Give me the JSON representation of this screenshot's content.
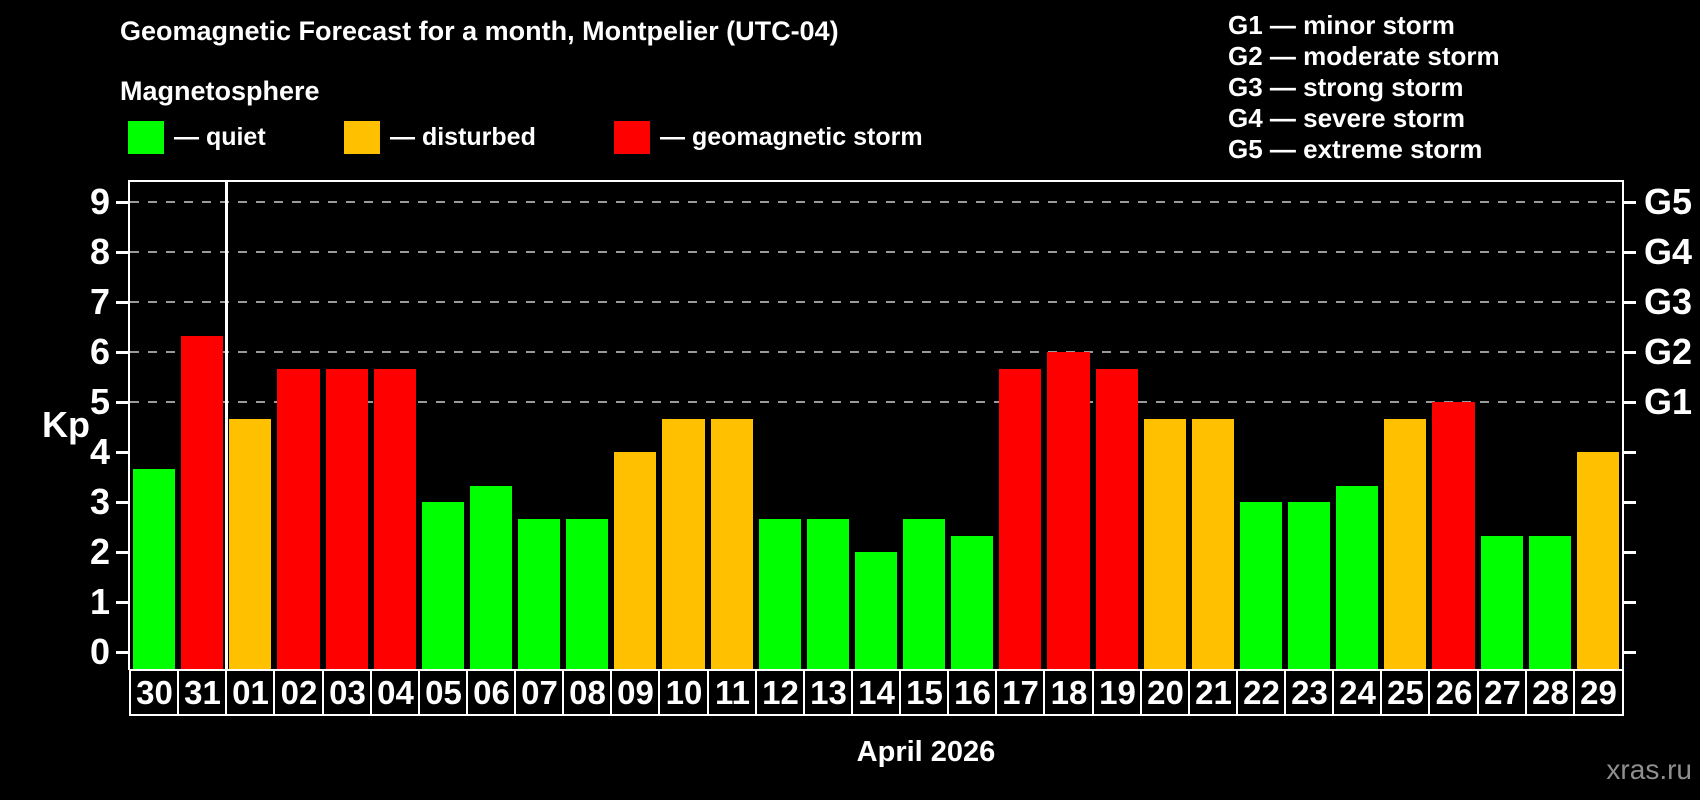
{
  "header": {
    "title": "Geomagnetic Forecast for a month, Montpelier (UTC-04)",
    "subtitle": "Magnetosphere"
  },
  "legend": {
    "items": [
      {
        "status": "quiet",
        "label": "— quiet",
        "color": "#00ff00"
      },
      {
        "status": "disturbed",
        "label": "— disturbed",
        "color": "#ffc000"
      },
      {
        "status": "storm",
        "label": "— geomagnetic storm",
        "color": "#ff0000"
      }
    ]
  },
  "storm_scale_legend": {
    "items": [
      "G1 — minor storm",
      "G2 — moderate storm",
      "G3 — strong storm",
      "G4 — severe storm",
      "G5 — extreme storm"
    ]
  },
  "chart_data": {
    "type": "bar",
    "title": "Geomagnetic Forecast for a month, Montpelier (UTC-04)",
    "subtitle": "Magnetosphere",
    "xlabel": "April 2026",
    "ylabel": "Kp",
    "ylim": [
      0,
      9
    ],
    "y_ticks": [
      0,
      1,
      2,
      3,
      4,
      5,
      6,
      7,
      8,
      9
    ],
    "gridlines_at_kp": [
      5,
      6,
      7,
      8,
      9
    ],
    "grid_style": "dashed gray horizontal",
    "legend_position": "top-left",
    "right_axis": {
      "labels": [
        {
          "kp": 5,
          "label": "G1"
        },
        {
          "kp": 6,
          "label": "G2"
        },
        {
          "kp": 7,
          "label": "G3"
        },
        {
          "kp": 8,
          "label": "G4"
        },
        {
          "kp": 9,
          "label": "G5"
        }
      ]
    },
    "month_boundary_after_index": 1,
    "categories": [
      "30",
      "31",
      "01",
      "02",
      "03",
      "04",
      "05",
      "06",
      "07",
      "08",
      "09",
      "10",
      "11",
      "12",
      "13",
      "14",
      "15",
      "16",
      "17",
      "18",
      "19",
      "20",
      "21",
      "22",
      "23",
      "24",
      "25",
      "26",
      "27",
      "28",
      "29"
    ],
    "values": [
      3.67,
      6.33,
      4.67,
      5.67,
      5.67,
      5.67,
      3,
      3.33,
      2.67,
      2.67,
      4,
      4.67,
      4.67,
      2.67,
      2.67,
      2,
      2.67,
      2.33,
      5.67,
      6,
      5.67,
      4.67,
      4.67,
      3,
      3,
      3.33,
      4.67,
      5,
      2.33,
      2.33,
      4
    ],
    "statuses": [
      "quiet",
      "storm",
      "disturbed",
      "storm",
      "storm",
      "storm",
      "quiet",
      "quiet",
      "quiet",
      "quiet",
      "disturbed",
      "disturbed",
      "disturbed",
      "quiet",
      "quiet",
      "quiet",
      "quiet",
      "quiet",
      "storm",
      "storm",
      "storm",
      "disturbed",
      "disturbed",
      "quiet",
      "quiet",
      "quiet",
      "disturbed",
      "storm",
      "quiet",
      "quiet",
      "disturbed"
    ],
    "status_colors": {
      "quiet": "#00ff00",
      "disturbed": "#ffc000",
      "storm": "#ff0000"
    }
  },
  "watermark": "xras.ru"
}
